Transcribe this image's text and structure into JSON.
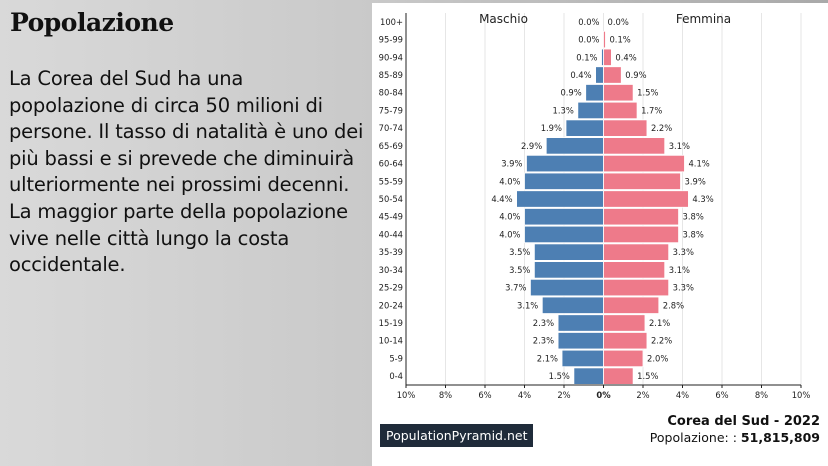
{
  "slide": {
    "title": "Popolazione",
    "paragraph_1": "La Corea del Sud ha una popolazione di circa 50 milioni di persone. Il tasso di natalità è uno dei più bassi e si prevede che diminuirà ulteriormente nei prossimi decenni.",
    "paragraph_2": "La maggior parte della popolazione vive nelle città lungo la costa occidentale."
  },
  "chart_data": {
    "type": "bar",
    "orientation": "horizontal-pyramid",
    "categories": [
      "100+",
      "95-99",
      "90-94",
      "85-89",
      "80-84",
      "75-79",
      "70-74",
      "65-69",
      "60-64",
      "55-59",
      "50-54",
      "45-49",
      "40-44",
      "35-39",
      "30-34",
      "25-29",
      "20-24",
      "15-19",
      "10-14",
      "5-9",
      "0-4"
    ],
    "series": [
      {
        "name": "Maschio",
        "color": "#4d7fb3",
        "values": [
          0.0,
          0.0,
          0.1,
          0.4,
          0.9,
          1.3,
          1.9,
          2.9,
          3.9,
          4.0,
          4.4,
          4.0,
          4.0,
          3.5,
          3.5,
          3.7,
          3.1,
          2.3,
          2.3,
          2.1,
          1.5
        ]
      },
      {
        "name": "Femmina",
        "color": "#ee7a8a",
        "values": [
          0.0,
          0.1,
          0.4,
          0.9,
          1.5,
          1.7,
          2.2,
          3.1,
          4.1,
          3.9,
          4.3,
          3.8,
          3.8,
          3.3,
          3.1,
          3.3,
          2.8,
          2.1,
          2.2,
          2.0,
          1.5
        ]
      }
    ],
    "value_labels_male": [
      "0.0%",
      "0.0%",
      "0.1%",
      "0.4%",
      "0.9%",
      "1.3%",
      "1.9%",
      "2.9%",
      "3.9%",
      "4.0%",
      "4.4%",
      "4.0%",
      "4.0%",
      "3.5%",
      "3.5%",
      "3.7%",
      "3.1%",
      "2.3%",
      "2.3%",
      "2.1%",
      "1.5%"
    ],
    "value_labels_female": [
      "0.0%",
      "0.1%",
      "0.4%",
      "0.9%",
      "1.5%",
      "1.7%",
      "2.2%",
      "3.1%",
      "4.1%",
      "3.9%",
      "4.3%",
      "3.8%",
      "3.8%",
      "3.3%",
      "3.1%",
      "3.3%",
      "2.8%",
      "2.1%",
      "2.2%",
      "2.0%",
      "1.5%"
    ],
    "x_range": [
      -10,
      10
    ],
    "x_ticks": [
      -10,
      -8,
      -6,
      -4,
      -2,
      0,
      2,
      4,
      6,
      8,
      10
    ],
    "x_tick_labels": [
      "10%",
      "8%",
      "6%",
      "4%",
      "2%",
      "0%",
      "2%",
      "4%",
      "6%",
      "8%",
      "10%"
    ],
    "grid": true,
    "footer": {
      "brand": "PopulationPyramid.net",
      "country_year": "Corea del Sud - 2022",
      "population_label": "Popolazione: :",
      "population_value": "51,815,809"
    }
  }
}
